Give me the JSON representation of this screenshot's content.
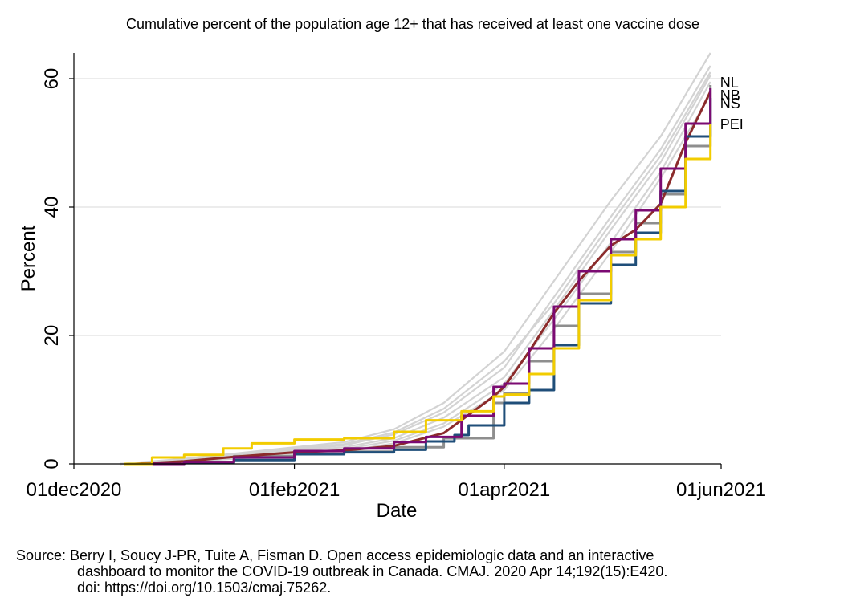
{
  "chart_data": {
    "type": "line",
    "title": "Cumulative percent of the population age 12+ that has received at least one vaccine dose",
    "xlabel": "Date",
    "ylabel": "Percent",
    "xlim": [
      "2020-12-01",
      "2021-06-01"
    ],
    "ylim": [
      0,
      64
    ],
    "x_ticks": [
      "2020-12-01",
      "2021-02-01",
      "2021-04-01",
      "2021-06-01"
    ],
    "x_tick_labels": [
      "01dec2020",
      "01feb2021",
      "01apr2021",
      "01jun2021"
    ],
    "y_ticks": [
      0,
      20,
      40,
      60
    ],
    "y_tick_labels": [
      "0",
      "20",
      "40",
      "60"
    ],
    "grid": "horizontal",
    "source": [
      "Source: Berry I, Soucy J-PR, Tuite A, Fisman D. Open access epidemiologic data and an interactive",
      "dashboard to monitor the COVID-19 outbreak in Canada. CMAJ. 2020 Apr 14;192(15):E420.",
      "doi: https://doi.org/10.1503/cmaj.75262."
    ],
    "series": [
      {
        "label": "NL",
        "color": "#8e8e8e",
        "points": [
          [
            "2020-12-15",
            0
          ],
          [
            "2021-01-01",
            0.3
          ],
          [
            "2021-01-15",
            1.2
          ],
          [
            "2021-02-01",
            1.6
          ],
          [
            "2021-02-15",
            1.9
          ],
          [
            "2021-03-01",
            2.6
          ],
          [
            "2021-03-15",
            4.0
          ],
          [
            "2021-03-29",
            9.5
          ],
          [
            "2021-04-01",
            11.0
          ],
          [
            "2021-04-08",
            16.0
          ],
          [
            "2021-04-15",
            21.5
          ],
          [
            "2021-04-22",
            26.5
          ],
          [
            "2021-05-01",
            33.0
          ],
          [
            "2021-05-08",
            37.5
          ],
          [
            "2021-05-15",
            42.0
          ],
          [
            "2021-05-22",
            49.5
          ],
          [
            "2021-05-29",
            59.0
          ]
        ]
      },
      {
        "label": "NB",
        "color": "#8b2b2b",
        "points": [
          [
            "2020-12-18",
            0
          ],
          [
            "2021-01-01",
            0.4
          ],
          [
            "2021-01-15",
            1.1
          ],
          [
            "2021-02-01",
            1.8
          ],
          [
            "2021-02-15",
            2.1
          ],
          [
            "2021-03-01",
            2.8
          ],
          [
            "2021-03-15",
            4.8
          ],
          [
            "2021-03-29",
            10.5
          ],
          [
            "2021-04-01",
            12.0
          ],
          [
            "2021-04-08",
            17.5
          ],
          [
            "2021-04-15",
            23.5
          ],
          [
            "2021-04-22",
            28.5
          ],
          [
            "2021-05-01",
            34.0
          ],
          [
            "2021-05-08",
            36.5
          ],
          [
            "2021-05-15",
            40.5
          ],
          [
            "2021-05-22",
            50.0
          ],
          [
            "2021-05-29",
            58.0
          ]
        ]
      },
      {
        "label": "NS",
        "color": "#1f4e79",
        "points": [
          [
            "2020-12-15",
            0
          ],
          [
            "2021-01-01",
            0.2
          ],
          [
            "2021-01-15",
            0.6
          ],
          [
            "2021-02-01",
            1.5
          ],
          [
            "2021-02-15",
            1.8
          ],
          [
            "2021-03-01",
            2.2
          ],
          [
            "2021-03-10",
            3.5
          ],
          [
            "2021-03-18",
            4.5
          ],
          [
            "2021-03-22",
            6.0
          ],
          [
            "2021-04-01",
            9.5
          ],
          [
            "2021-04-08",
            11.5
          ],
          [
            "2021-04-15",
            18.5
          ],
          [
            "2021-04-22",
            25.0
          ],
          [
            "2021-05-01",
            31.0
          ],
          [
            "2021-05-08",
            36.0
          ],
          [
            "2021-05-15",
            42.5
          ],
          [
            "2021-05-22",
            51.0
          ],
          [
            "2021-05-29",
            57.0
          ]
        ]
      },
      {
        "label": "",
        "color": "#7b0a72",
        "points": [
          [
            "2020-12-20",
            0
          ],
          [
            "2021-01-01",
            0.3
          ],
          [
            "2021-01-15",
            1.0
          ],
          [
            "2021-02-01",
            2.0
          ],
          [
            "2021-02-15",
            2.4
          ],
          [
            "2021-03-01",
            3.4
          ],
          [
            "2021-03-10",
            4.2
          ],
          [
            "2021-03-20",
            7.5
          ],
          [
            "2021-03-29",
            12.0
          ],
          [
            "2021-04-01",
            12.5
          ],
          [
            "2021-04-08",
            18.0
          ],
          [
            "2021-04-15",
            24.5
          ],
          [
            "2021-04-22",
            30.0
          ],
          [
            "2021-05-01",
            35.0
          ],
          [
            "2021-05-08",
            39.5
          ],
          [
            "2021-05-15",
            46.0
          ],
          [
            "2021-05-22",
            53.0
          ],
          [
            "2021-05-29",
            58.5
          ]
        ]
      },
      {
        "label": "PEI",
        "color": "#f2cc00",
        "points": [
          [
            "2020-12-15",
            0
          ],
          [
            "2020-12-23",
            1.0
          ],
          [
            "2021-01-01",
            1.4
          ],
          [
            "2021-01-12",
            2.4
          ],
          [
            "2021-01-20",
            3.2
          ],
          [
            "2021-02-01",
            3.8
          ],
          [
            "2021-02-15",
            4.0
          ],
          [
            "2021-03-01",
            5.0
          ],
          [
            "2021-03-10",
            6.8
          ],
          [
            "2021-03-20",
            8.2
          ],
          [
            "2021-03-29",
            10.5
          ],
          [
            "2021-04-01",
            10.8
          ],
          [
            "2021-04-08",
            14.0
          ],
          [
            "2021-04-15",
            18.0
          ],
          [
            "2021-04-22",
            25.5
          ],
          [
            "2021-05-01",
            32.5
          ],
          [
            "2021-05-08",
            35.0
          ],
          [
            "2021-05-15",
            40.0
          ],
          [
            "2021-05-22",
            47.5
          ],
          [
            "2021-05-29",
            53.0
          ]
        ]
      }
    ],
    "background_series": [
      {
        "color": "#d3d3d3",
        "points": [
          [
            "2020-12-14",
            0
          ],
          [
            "2021-01-01",
            0.8
          ],
          [
            "2021-01-15",
            1.6
          ],
          [
            "2021-02-01",
            2.6
          ],
          [
            "2021-02-15",
            3.4
          ],
          [
            "2021-03-01",
            5.4
          ],
          [
            "2021-03-15",
            9.5
          ],
          [
            "2021-04-01",
            17.5
          ],
          [
            "2021-04-15",
            28.5
          ],
          [
            "2021-05-01",
            41.0
          ],
          [
            "2021-05-15",
            51.0
          ],
          [
            "2021-05-29",
            64.0
          ]
        ]
      },
      {
        "color": "#d3d3d3",
        "points": [
          [
            "2020-12-14",
            0
          ],
          [
            "2021-01-01",
            0.6
          ],
          [
            "2021-01-15",
            1.3
          ],
          [
            "2021-02-01",
            2.2
          ],
          [
            "2021-02-15",
            2.9
          ],
          [
            "2021-03-01",
            4.6
          ],
          [
            "2021-03-15",
            8.0
          ],
          [
            "2021-04-01",
            15.0
          ],
          [
            "2021-04-15",
            26.0
          ],
          [
            "2021-05-01",
            38.5
          ],
          [
            "2021-05-15",
            49.0
          ],
          [
            "2021-05-29",
            62.0
          ]
        ]
      },
      {
        "color": "#d3d3d3",
        "points": [
          [
            "2020-12-14",
            0
          ],
          [
            "2021-01-01",
            0.5
          ],
          [
            "2021-01-15",
            1.1
          ],
          [
            "2021-02-01",
            2.0
          ],
          [
            "2021-02-15",
            2.6
          ],
          [
            "2021-03-01",
            4.0
          ],
          [
            "2021-03-15",
            7.2
          ],
          [
            "2021-04-01",
            13.5
          ],
          [
            "2021-04-15",
            24.0
          ],
          [
            "2021-05-01",
            36.5
          ],
          [
            "2021-05-15",
            47.0
          ],
          [
            "2021-05-29",
            60.5
          ]
        ]
      },
      {
        "color": "#d3d3d3",
        "points": [
          [
            "2020-12-14",
            0
          ],
          [
            "2021-01-01",
            0.4
          ],
          [
            "2021-01-15",
            0.9
          ],
          [
            "2021-02-01",
            1.7
          ],
          [
            "2021-02-15",
            2.3
          ],
          [
            "2021-03-01",
            3.6
          ],
          [
            "2021-03-15",
            6.3
          ],
          [
            "2021-04-01",
            12.5
          ],
          [
            "2021-04-15",
            22.5
          ],
          [
            "2021-05-01",
            34.5
          ],
          [
            "2021-05-15",
            45.5
          ],
          [
            "2021-05-29",
            59.5
          ]
        ]
      },
      {
        "color": "#d3d3d3",
        "points": [
          [
            "2020-12-14",
            0
          ],
          [
            "2021-01-01",
            0.5
          ],
          [
            "2021-01-15",
            1.4
          ],
          [
            "2021-02-01",
            2.4
          ],
          [
            "2021-02-15",
            3.1
          ],
          [
            "2021-03-01",
            4.9
          ],
          [
            "2021-03-15",
            8.6
          ],
          [
            "2021-04-01",
            16.0
          ],
          [
            "2021-04-15",
            25.0
          ],
          [
            "2021-05-01",
            37.5
          ],
          [
            "2021-05-15",
            48.0
          ],
          [
            "2021-05-29",
            61.0
          ]
        ]
      },
      {
        "color": "#d3d3d3",
        "points": [
          [
            "2020-12-14",
            0
          ],
          [
            "2021-01-01",
            0.3
          ],
          [
            "2021-01-15",
            0.8
          ],
          [
            "2021-02-01",
            1.5
          ],
          [
            "2021-02-15",
            2.0
          ],
          [
            "2021-03-01",
            3.2
          ],
          [
            "2021-03-15",
            5.8
          ],
          [
            "2021-04-01",
            11.5
          ],
          [
            "2021-04-15",
            21.0
          ],
          [
            "2021-05-01",
            33.0
          ],
          [
            "2021-05-15",
            44.5
          ],
          [
            "2021-05-29",
            57.5
          ]
        ]
      }
    ]
  }
}
